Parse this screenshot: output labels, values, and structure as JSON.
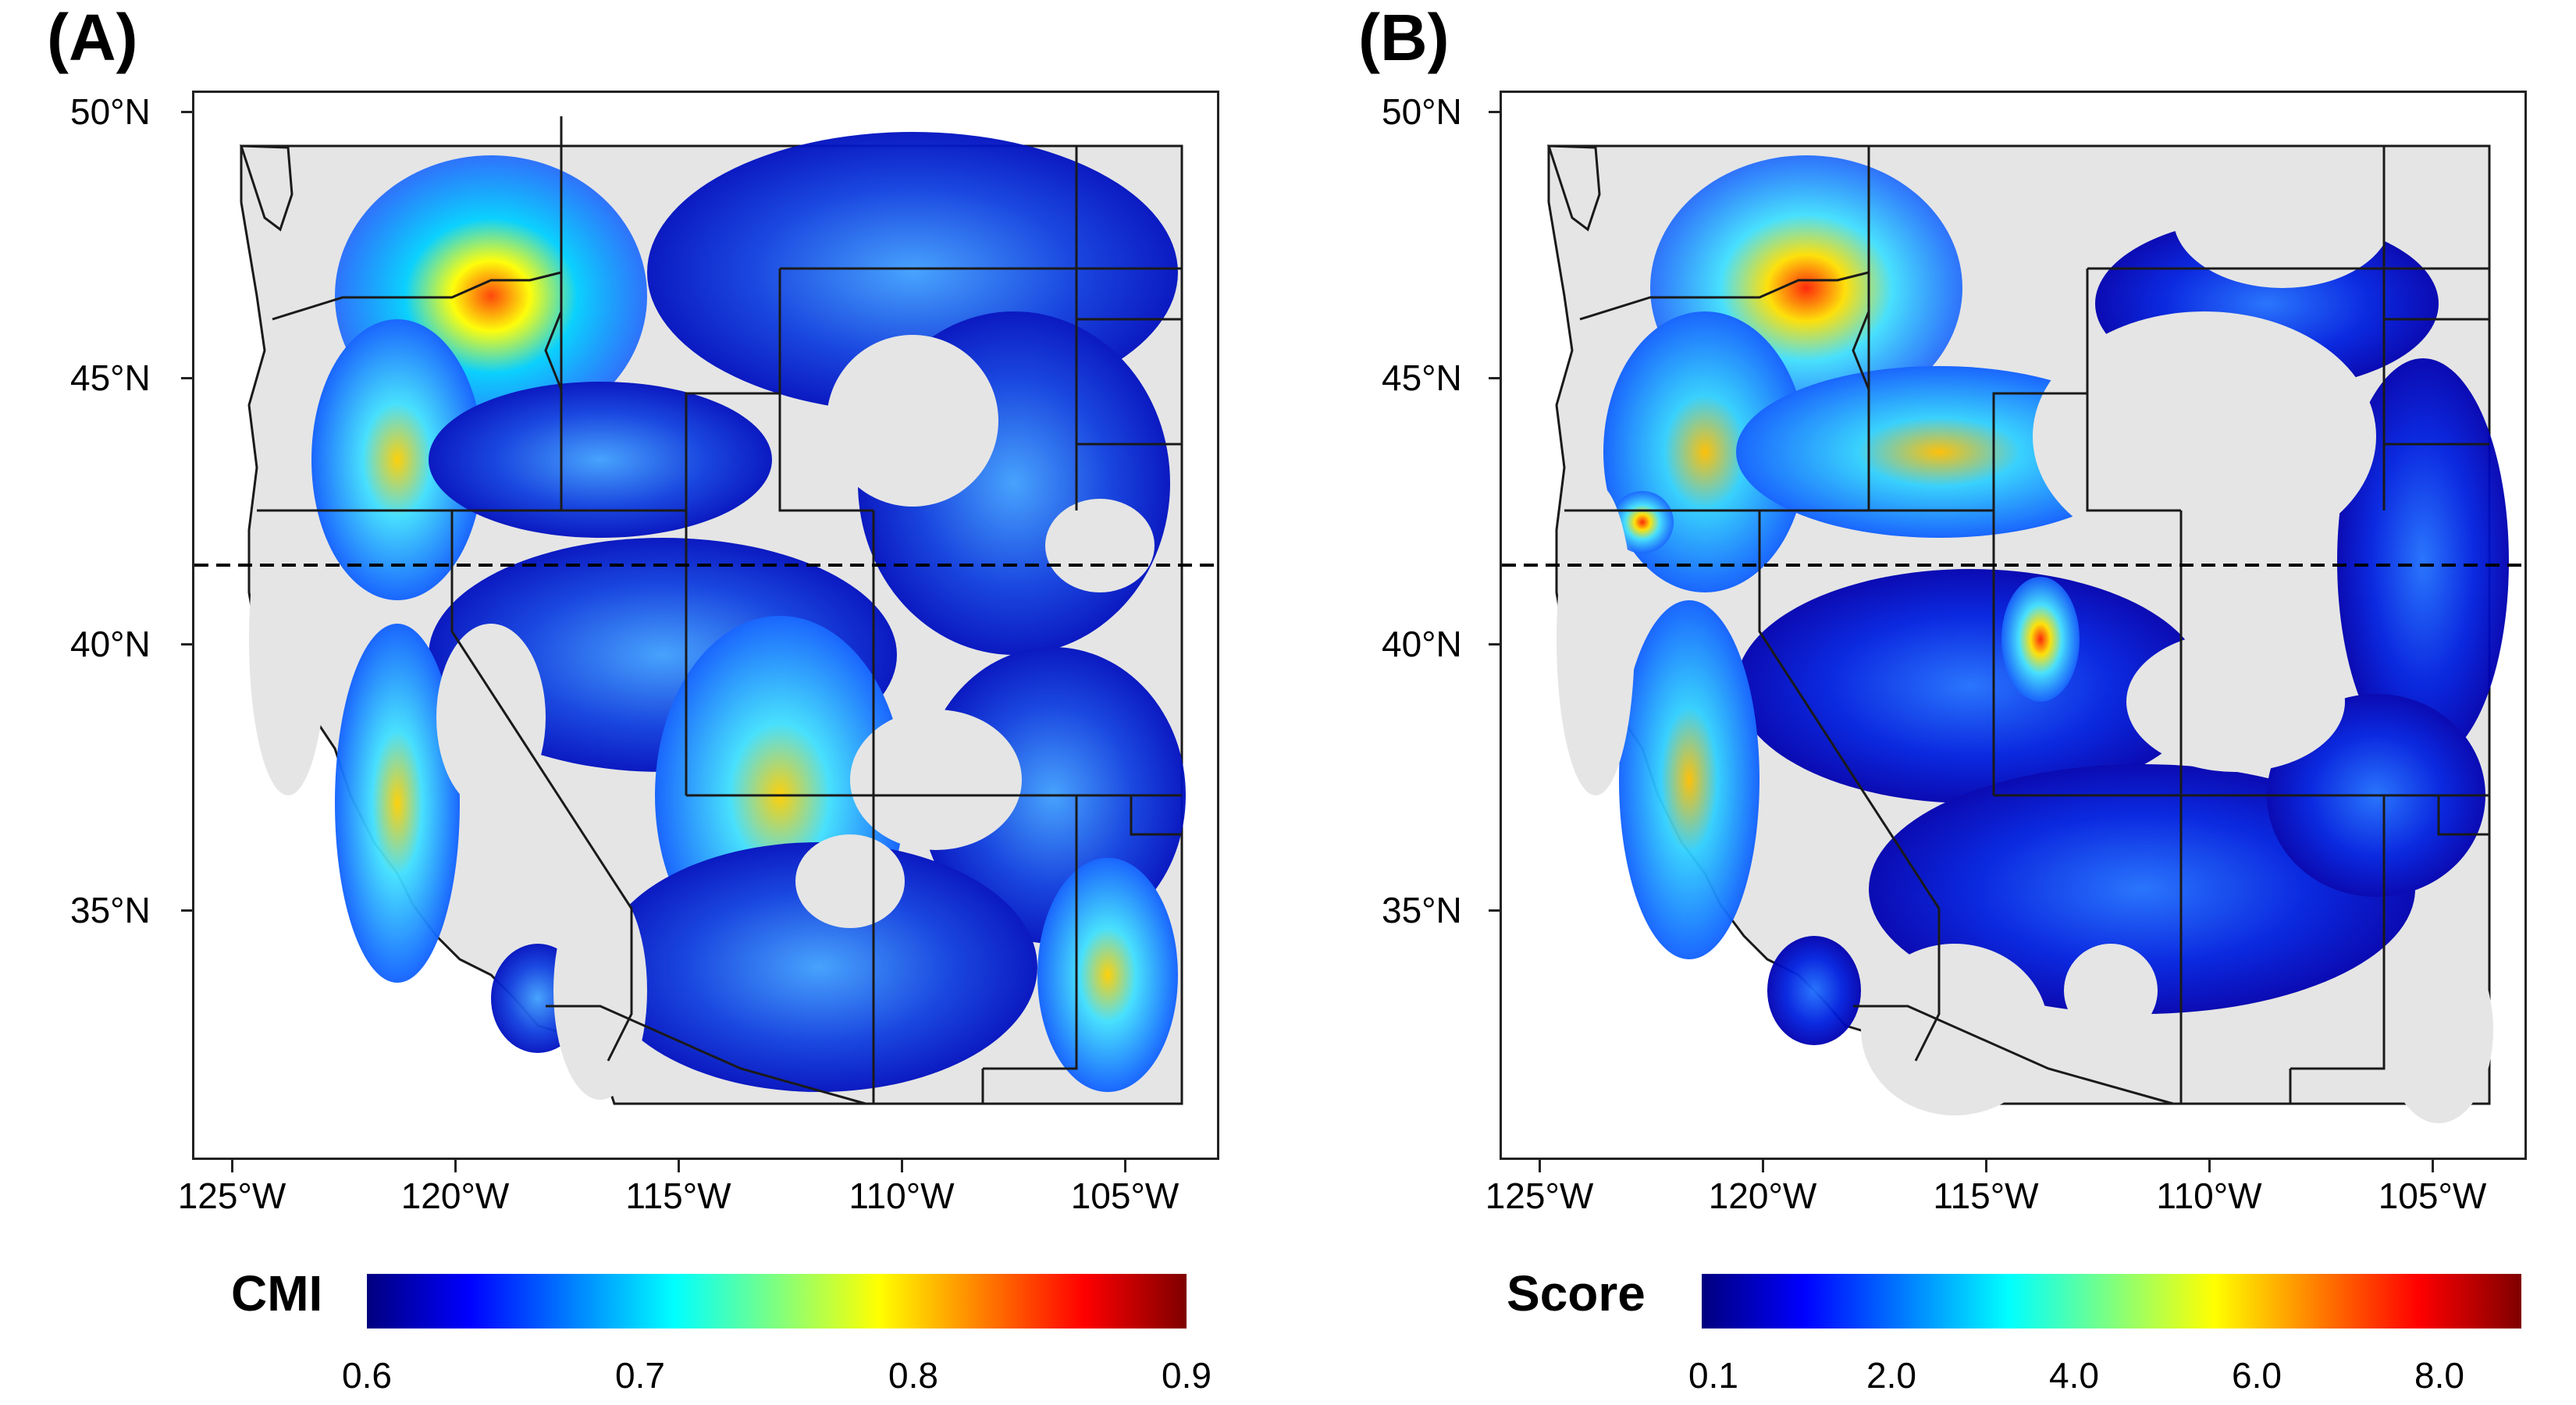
{
  "panels": [
    {
      "letter": "(A)",
      "legend_title": "CMI",
      "legend_ticks": [
        "0.6",
        "0.7",
        "0.8",
        "0.9"
      ]
    },
    {
      "letter": "(B)",
      "legend_title": "Score",
      "legend_ticks": [
        "0.1",
        "2.0",
        "4.0",
        "6.0",
        "8.0"
      ]
    }
  ],
  "axis": {
    "y_labels": [
      "50°N",
      "45°N",
      "40°N",
      "35°N"
    ],
    "x_labels": [
      "125°W",
      "120°W",
      "115°W",
      "110°W",
      "105°W"
    ],
    "reference_line_latitude": 41
  },
  "colors": {
    "land": "#e5e5e5",
    "border": "#1a1a1a",
    "jet": [
      "#00007f",
      "#0000ff",
      "#007fff",
      "#00ffff",
      "#7fff7f",
      "#ffff00",
      "#ff7f00",
      "#ff0000",
      "#7f0000"
    ]
  }
}
